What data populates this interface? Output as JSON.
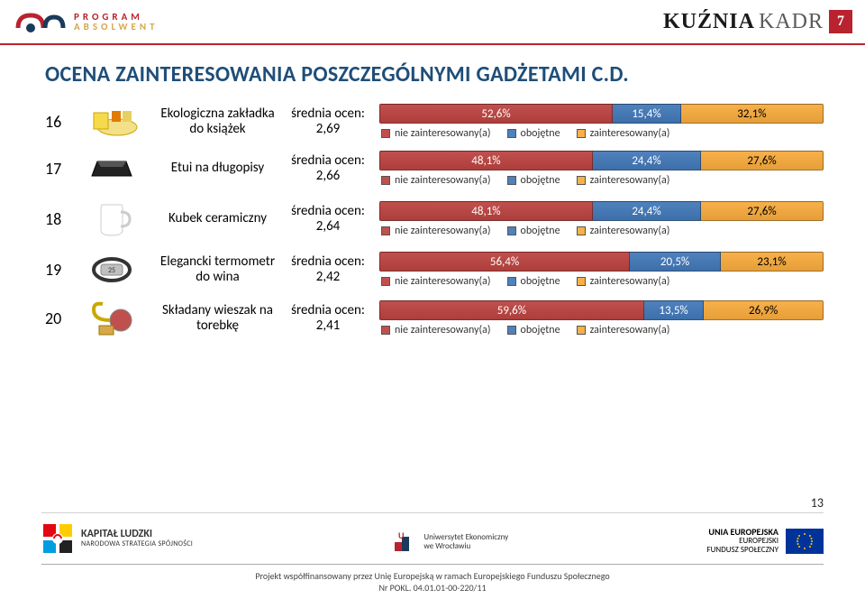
{
  "header": {
    "left_logo_top": "PROGRAM",
    "left_logo_bottom": "ABSOLWENT",
    "right_brand_bold": "KUŹNIA",
    "right_brand_light": "KADR",
    "page_badge": "7"
  },
  "title": "OCENA ZAINTERESOWANIA POSZCZEGÓLNYMI GADŻETAMI C.D.",
  "colors": {
    "seg1": "#c0504d",
    "seg2": "#4f81bd",
    "seg3": "#f7b04a",
    "seg2_text_dark": false,
    "seg3_text_dark": true,
    "accent_red": "#b8232f",
    "title_color": "#1f4e79"
  },
  "legend": {
    "l1": "nie zainteresowany(a)",
    "l2": "obojętne",
    "l3": "zainteresowany(a)"
  },
  "rows": [
    {
      "rank": "16",
      "name": "Ekologiczna zakładka do książek",
      "score_label": "średnia ocen:",
      "score_value": "2,69",
      "segments": [
        {
          "label": "52,6%",
          "pct": 52.6,
          "legend": 1
        },
        {
          "label": "15,4%",
          "pct": 15.4,
          "legend": 2
        },
        {
          "label": "32,1%",
          "pct": 32.1,
          "legend": 3
        }
      ]
    },
    {
      "rank": "17",
      "name": "Etui na długopisy",
      "score_label": "średnia ocen:",
      "score_value": "2,66",
      "segments": [
        {
          "label": "48,1%",
          "pct": 48.1,
          "legend": 1
        },
        {
          "label": "24,4%",
          "pct": 24.4,
          "legend": 2
        },
        {
          "label": "27,6%",
          "pct": 27.6,
          "legend": 3
        }
      ]
    },
    {
      "rank": "18",
      "name": "Kubek ceramiczny",
      "score_label": "średnia ocen:",
      "score_value": "2,64",
      "segments": [
        {
          "label": "48,1%",
          "pct": 48.1,
          "legend": 1
        },
        {
          "label": "24,4%",
          "pct": 24.4,
          "legend": 2
        },
        {
          "label": "27,6%",
          "pct": 27.6,
          "legend": 3
        }
      ]
    },
    {
      "rank": "19",
      "name": "Elegancki termometr do wina",
      "score_label": "średnia ocen:",
      "score_value": "2,42",
      "segments": [
        {
          "label": "56,4%",
          "pct": 56.4,
          "legend": 1
        },
        {
          "label": "20,5%",
          "pct": 20.5,
          "legend": 2
        },
        {
          "label": "23,1%",
          "pct": 23.1,
          "legend": 3
        }
      ]
    },
    {
      "rank": "20",
      "name": "Składany wieszak na torebkę",
      "score_label": "średnia ocen:",
      "score_value": "2,41",
      "segments": [
        {
          "label": "59,6%",
          "pct": 59.6,
          "legend": 1
        },
        {
          "label": "13,5%",
          "pct": 13.5,
          "legend": 2
        },
        {
          "label": "26,9%",
          "pct": 26.9,
          "legend": 3
        }
      ]
    }
  ],
  "footer": {
    "kl_bold": "KAPITAŁ LUDZKI",
    "kl_sub": "NARODOWA STRATEGIA SPÓJNOŚCI",
    "ue_name": "Uniwersytet Ekonomiczny",
    "ue_sub": "we Wrocławiu",
    "eu_line1": "UNIA EUROPEJSKA",
    "eu_line2": "EUROPEJSKI",
    "eu_line3": "FUNDUSZ SPOŁECZNY",
    "note1": "Projekt współfinansowany przez Unię Europejską w ramach Europejskiego Funduszu Społecznego",
    "note2": "Nr POKL. 04.01.01-00-220/11",
    "page_number": "13"
  }
}
